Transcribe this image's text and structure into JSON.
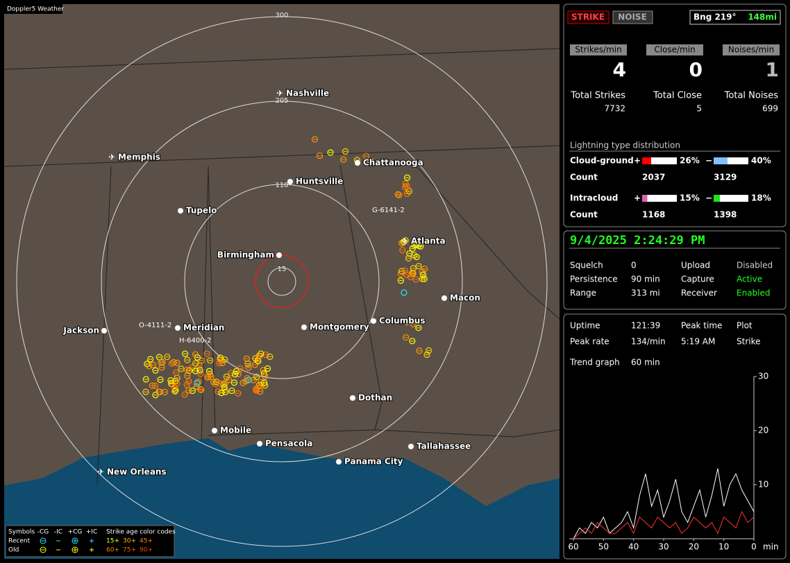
{
  "window": {
    "title": "Doppler5 Weather"
  },
  "map": {
    "range_labels": [
      "300",
      "205",
      "110",
      "15"
    ],
    "cities": [
      "Nashville",
      "Memphis",
      "Chattanooga",
      "Huntsville",
      "Tupelo",
      "Atlanta",
      "Birmingham",
      "Macon",
      "Jackson",
      "Meridian",
      "Montgomery",
      "Columbus",
      "Dothan",
      "Mobile",
      "Pensacola",
      "Tallahassee",
      "Panama City",
      "New Orleans"
    ],
    "storm_ids": [
      "G-6141-2",
      "O-4111-2",
      "H-6400-2"
    ]
  },
  "legend": {
    "symbols": "Symbols",
    "types": [
      "-CG",
      "-IC",
      "+CG",
      "+IC"
    ],
    "age_title": "Strike age color codes",
    "rows": [
      "Recent",
      "Old"
    ],
    "ages": [
      "15+",
      "30+",
      "45+",
      "60+",
      "75+",
      "90+"
    ]
  },
  "status": {
    "strike": "STRIKE",
    "noise": "NOISE",
    "bearing": "Bng 219°",
    "distance": "148mi"
  },
  "rates": {
    "headers": [
      "Strikes/min",
      "Close/min",
      "Noises/min"
    ],
    "values": [
      4,
      0,
      1
    ]
  },
  "totals": {
    "labels": [
      "Total Strikes",
      "Total Close",
      "Total Noises"
    ],
    "values": [
      7732,
      5,
      699
    ]
  },
  "distribution": {
    "title": "Lightning type distribution",
    "plus_sign": "+",
    "minus_sign": "−",
    "count_label": "Count",
    "rows": [
      {
        "label": "Cloud-ground",
        "plus": {
          "value": 26,
          "label": "26%"
        },
        "minus": {
          "value": 40,
          "label": "40%"
        },
        "plus_count": 2037,
        "minus_count": 3129
      },
      {
        "label": "Intracloud",
        "plus": {
          "value": 15,
          "label": "15%"
        },
        "minus": {
          "value": 18,
          "label": "18%"
        },
        "plus_count": 1168,
        "minus_count": 1398
      }
    ]
  },
  "settings": {
    "datetime": "9/4/2025 2:24:29 PM",
    "left": [
      [
        "Squelch",
        "0"
      ],
      [
        "Persistence",
        "90 min"
      ],
      [
        "Range",
        "313 mi"
      ]
    ],
    "right": [
      [
        "Upload",
        "Disabled"
      ],
      [
        "Capture",
        "Active"
      ],
      [
        "Receiver",
        "Enabled"
      ]
    ]
  },
  "stats": {
    "rows": [
      [
        "Uptime",
        "121:39",
        "Peak time",
        "Plot"
      ],
      [
        "Peak rate",
        "134/min",
        "5:19 AM",
        "Strike"
      ]
    ],
    "trend_label": "Trend graph",
    "trend_window": "60 min"
  },
  "trend": {
    "type": "line",
    "x": [
      60,
      58,
      56,
      54,
      52,
      50,
      48,
      46,
      44,
      42,
      40,
      38,
      36,
      34,
      32,
      30,
      28,
      26,
      24,
      22,
      20,
      18,
      16,
      14,
      12,
      10,
      8,
      6,
      4,
      2,
      0
    ],
    "series": [
      {
        "color": "#ffffff",
        "values": [
          0,
          2,
          1,
          3,
          2,
          4,
          1,
          2,
          3,
          5,
          2,
          8,
          12,
          6,
          9,
          4,
          7,
          11,
          5,
          3,
          6,
          9,
          4,
          8,
          13,
          6,
          10,
          12,
          9,
          7,
          5
        ]
      },
      {
        "color": "#ff3030",
        "values": [
          0,
          1,
          2,
          1,
          3,
          2,
          1,
          1,
          2,
          3,
          1,
          4,
          3,
          2,
          4,
          3,
          2,
          3,
          1,
          2,
          4,
          3,
          2,
          3,
          1,
          4,
          3,
          2,
          5,
          3,
          4
        ]
      }
    ],
    "xlim": [
      60,
      0
    ],
    "ylim": [
      0,
      30
    ],
    "yticks": [
      10,
      20,
      30
    ],
    "xticks": [
      60,
      50,
      40,
      30,
      20,
      10,
      0
    ],
    "x_unit": "min"
  }
}
